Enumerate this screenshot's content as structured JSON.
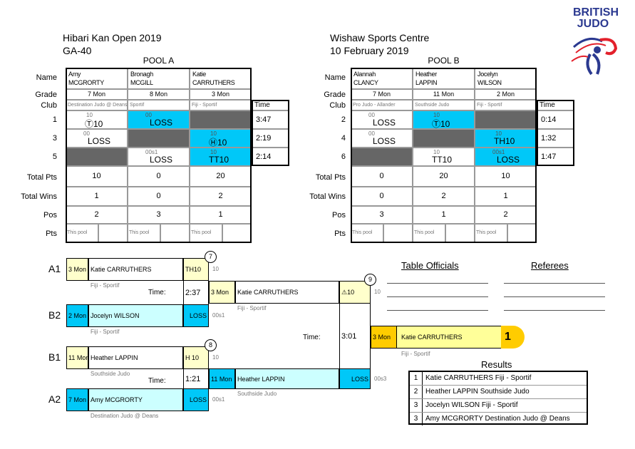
{
  "header": {
    "left_title": "Hibari Kan Open 2019",
    "left_subtitle": "GA-40",
    "right_title": "Wishaw Sports Centre",
    "right_subtitle": "10 February 2019"
  },
  "logo": {
    "text_line1": "BRITISH",
    "text_line2": "JUDO",
    "colors": {
      "blue": "#2b3990",
      "red": "#e3202b"
    }
  },
  "row_labels": {
    "name": "Name",
    "grade": "Grade",
    "club": "Club",
    "time": "Time",
    "total_pts": "Total Pts",
    "total_wins": "Total Wins",
    "pos": "Pos",
    "pts": "Pts",
    "this_pool": "This pool"
  },
  "pools": [
    {
      "title": "POOL A",
      "players": [
        {
          "first": "Amy",
          "last": "MCGRORTY",
          "grade": "7 Mon",
          "club": "Destination Judo @ Deans",
          "total_pts": "10",
          "total_wins": "1",
          "pos": "2"
        },
        {
          "first": "Bronagh",
          "last": "MCGILL",
          "grade": "8 Mon",
          "club": "Sportif",
          "total_pts": "0",
          "total_wins": "0",
          "pos": "3"
        },
        {
          "first": "Katie",
          "last": "CARRUTHERS",
          "grade": "3 Mon",
          "club": "Fiji - Sportif",
          "total_pts": "20",
          "total_wins": "2",
          "pos": "1"
        }
      ],
      "bouts": [
        {
          "no": "1",
          "time": "3:47",
          "cells": [
            {
              "small": "10",
              "main": "Ⓣ10",
              "state": "white"
            },
            {
              "small": "00",
              "main": "LOSS",
              "state": "blue"
            },
            {
              "small": "",
              "main": "",
              "state": "grey"
            }
          ]
        },
        {
          "no": "3",
          "time": "2:19",
          "cells": [
            {
              "small": "00",
              "main": "LOSS",
              "state": "white"
            },
            {
              "small": "",
              "main": "",
              "state": "grey"
            },
            {
              "small": "10",
              "main": "Ⓗ10",
              "state": "blue"
            }
          ]
        },
        {
          "no": "5",
          "time": "2:14",
          "cells": [
            {
              "small": "",
              "main": "",
              "state": "grey"
            },
            {
              "small": "00s1",
              "main": "LOSS",
              "state": "white"
            },
            {
              "small": "10",
              "main": "TT10",
              "state": "blue"
            }
          ]
        }
      ]
    },
    {
      "title": "POOL B",
      "players": [
        {
          "first": "Alannah",
          "last": "CLANCY",
          "grade": "7 Mon",
          "club": "Pro Judo - Allander",
          "total_pts": "0",
          "total_wins": "0",
          "pos": "3"
        },
        {
          "first": "Heather",
          "last": "LAPPIN",
          "grade": "11 Mon",
          "club": "Southside Judo",
          "total_pts": "20",
          "total_wins": "2",
          "pos": "1"
        },
        {
          "first": "Jocelyn",
          "last": "WILSON",
          "grade": "2 Mon",
          "club": "Fiji - Sportif",
          "total_pts": "10",
          "total_wins": "1",
          "pos": "2"
        }
      ],
      "bouts": [
        {
          "no": "2",
          "time": "0:14",
          "cells": [
            {
              "small": "00",
              "main": "LOSS",
              "state": "white"
            },
            {
              "small": "10",
              "main": "Ⓣ10",
              "state": "blue"
            },
            {
              "small": "",
              "main": "",
              "state": "grey"
            }
          ]
        },
        {
          "no": "4",
          "time": "1:32",
          "cells": [
            {
              "small": "00",
              "main": "LOSS",
              "state": "white"
            },
            {
              "small": "",
              "main": "",
              "state": "grey"
            },
            {
              "small": "10",
              "main": "TH10",
              "state": "blue"
            }
          ]
        },
        {
          "no": "6",
          "time": "1:47",
          "cells": [
            {
              "small": "",
              "main": "",
              "state": "grey"
            },
            {
              "small": "10",
              "main": "TT10",
              "state": "white"
            },
            {
              "small": "00s1",
              "main": "LOSS",
              "state": "blue"
            }
          ]
        }
      ]
    }
  ],
  "bracket": {
    "time_label": "Time:",
    "semis": [
      {
        "number": "7",
        "time": "2:37",
        "top": {
          "seed": "A1",
          "grade": "3 Mon",
          "name": "Katie CARRUTHERS",
          "score": "TH10",
          "side": "10",
          "club": "Fiji - Sportif"
        },
        "bottom": {
          "seed": "B2",
          "grade": "2 Mon",
          "name": "Jocelyn WILSON",
          "score": "LOSS",
          "side": "00s1",
          "club": "Fiji - Sportif"
        }
      },
      {
        "number": "8",
        "time": "1:21",
        "top": {
          "seed": "B1",
          "grade": "11 Mon",
          "name": "Heather LAPPIN",
          "score": "H 10",
          "side": "10",
          "club": "Southside Judo"
        },
        "bottom": {
          "seed": "A2",
          "grade": "7 Mon",
          "name": "Amy MCGRORTY",
          "score": "LOSS",
          "side": "00s1",
          "club": "Destination Judo @ Deans"
        }
      }
    ],
    "final": {
      "number": "9",
      "time": "3:01",
      "top": {
        "grade": "3 Mon",
        "name": "Katie CARRUTHERS",
        "score": "⚠10",
        "side": "10",
        "club": "Fiji - Sportif"
      },
      "bottom": {
        "grade": "11 Mon",
        "name": "Heather LAPPIN",
        "score": "LOSS",
        "side": "00s3",
        "club": "Southside Judo"
      }
    },
    "winner": {
      "grade": "3 Mon",
      "name": "Katie CARRUTHERS",
      "place": "1",
      "club": "Fiji - Sportif"
    }
  },
  "officials": {
    "table_officials": "Table Officials",
    "referees": "Referees"
  },
  "results": {
    "title": "Results",
    "rows": [
      {
        "place": "1",
        "text": "Katie CARRUTHERS Fiji - Sportif"
      },
      {
        "place": "2",
        "text": "Heather LAPPIN Southside Judo"
      },
      {
        "place": "3",
        "text": "Jocelyn WILSON Fiji - Sportif"
      },
      {
        "place": "3",
        "text": "Amy MCGRORTY Destination Judo @ Deans"
      }
    ]
  },
  "colors": {
    "win_blue": "#00c8f8",
    "grey": "#666666",
    "light_yellow": "#ffffcc",
    "light_blue": "#ccffff",
    "gold": "#ffcc00"
  }
}
